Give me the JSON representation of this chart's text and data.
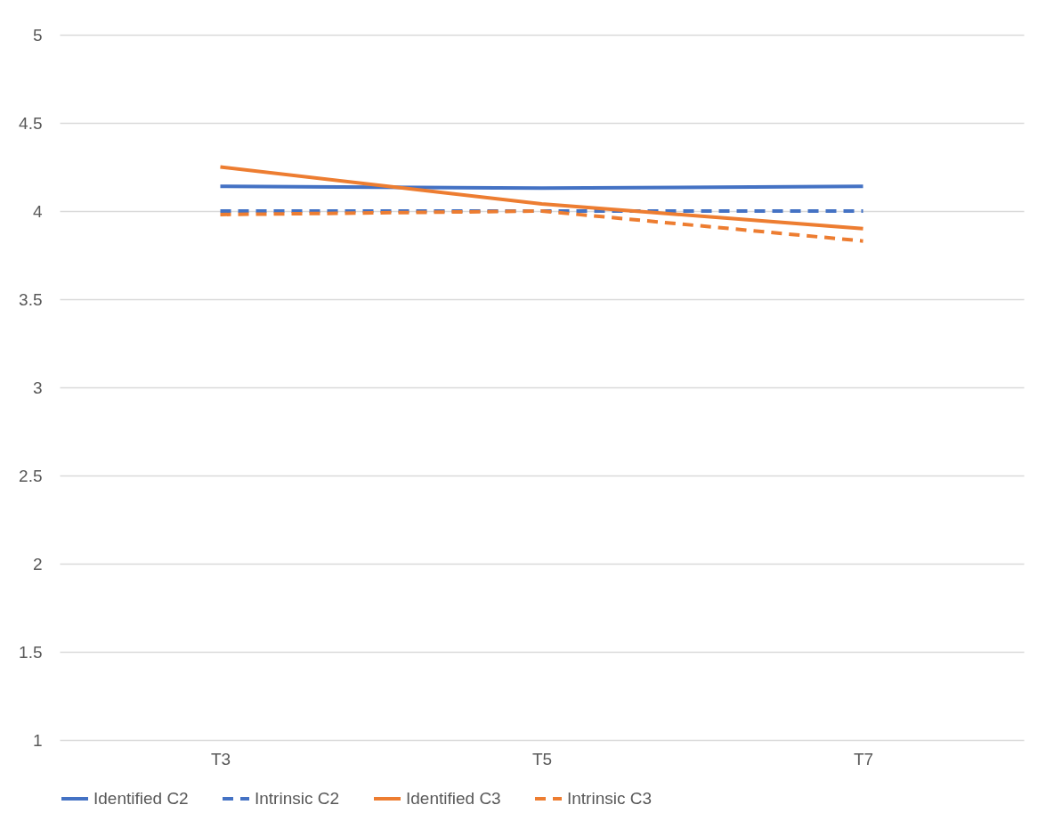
{
  "chart_data": {
    "type": "line",
    "categories": [
      "T3",
      "T5",
      "T7"
    ],
    "series": [
      {
        "name": "Identified C2",
        "color": "#4472c4",
        "line_style": "solid",
        "values": [
          4.14,
          4.13,
          4.14
        ]
      },
      {
        "name": "Intrinsic C2",
        "color": "#4472c4",
        "line_style": "dashed",
        "values": [
          4.0,
          4.0,
          4.0
        ]
      },
      {
        "name": "Identified C3",
        "color": "#ed7d31",
        "line_style": "solid",
        "values": [
          4.25,
          4.04,
          3.9
        ]
      },
      {
        "name": "Intrinsic C3",
        "color": "#ed7d31",
        "line_style": "dashed",
        "values": [
          3.98,
          4.0,
          3.83
        ]
      }
    ],
    "ylim": [
      1,
      5
    ],
    "yticks": [
      1,
      1.5,
      2,
      2.5,
      3,
      3.5,
      4,
      4.5,
      5
    ],
    "grid": "y",
    "legend": "bottom",
    "marker": "none"
  }
}
